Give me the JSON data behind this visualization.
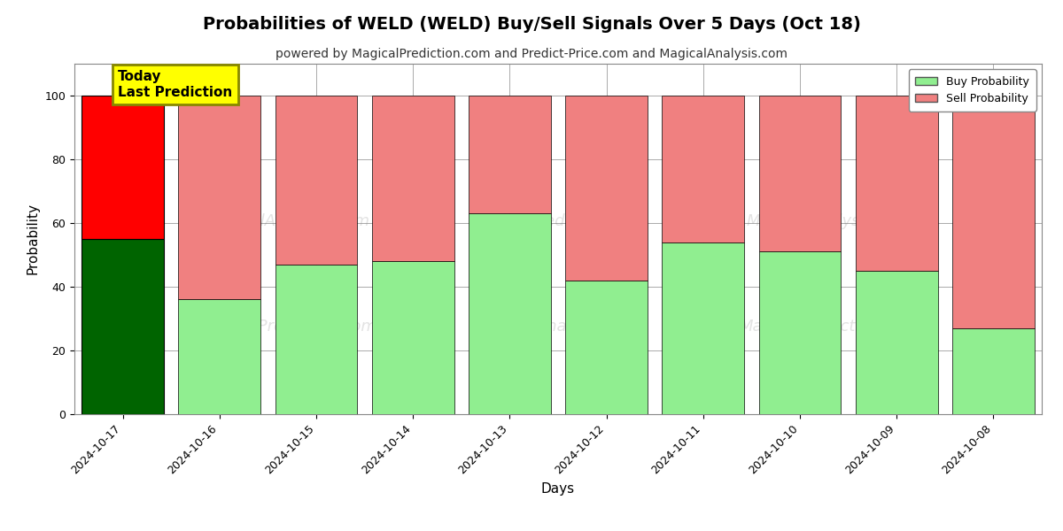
{
  "title": "Probabilities of WELD (WELD) Buy/Sell Signals Over 5 Days (Oct 18)",
  "subtitle": "powered by MagicalPrediction.com and Predict-Price.com and MagicalAnalysis.com",
  "xlabel": "Days",
  "ylabel": "Probability",
  "watermark_line1": "MagicalAnalysis.com",
  "watermark_line2": "MagicalPrediction.com",
  "categories": [
    "2024-10-17",
    "2024-10-16",
    "2024-10-15",
    "2024-10-14",
    "2024-10-13",
    "2024-10-12",
    "2024-10-11",
    "2024-10-10",
    "2024-10-09",
    "2024-10-08"
  ],
  "buy_values": [
    55,
    36,
    47,
    48,
    63,
    42,
    54,
    51,
    45,
    27
  ],
  "sell_values": [
    45,
    64,
    53,
    52,
    37,
    58,
    46,
    49,
    55,
    73
  ],
  "today_buy_color": "#006400",
  "today_sell_color": "#ff0000",
  "buy_color": "#90ee90",
  "sell_color": "#f08080",
  "today_label_bg": "#ffff00",
  "today_label_border": "#888800",
  "today_label_text": "Today\nLast Prediction",
  "legend_buy": "Buy Probability",
  "legend_sell": "Sell Probability",
  "ylim": [
    0,
    110
  ],
  "yticks": [
    0,
    20,
    40,
    60,
    80,
    100
  ],
  "dashed_line_y": 110,
  "figsize": [
    12,
    6
  ],
  "dpi": 100,
  "bg_color": "#ffffff",
  "grid_color": "#aaaaaa",
  "bar_edge_color": "#000000",
  "bar_width": 0.85,
  "title_fontsize": 14,
  "subtitle_fontsize": 10,
  "axis_fontsize": 11,
  "tick_fontsize": 9
}
